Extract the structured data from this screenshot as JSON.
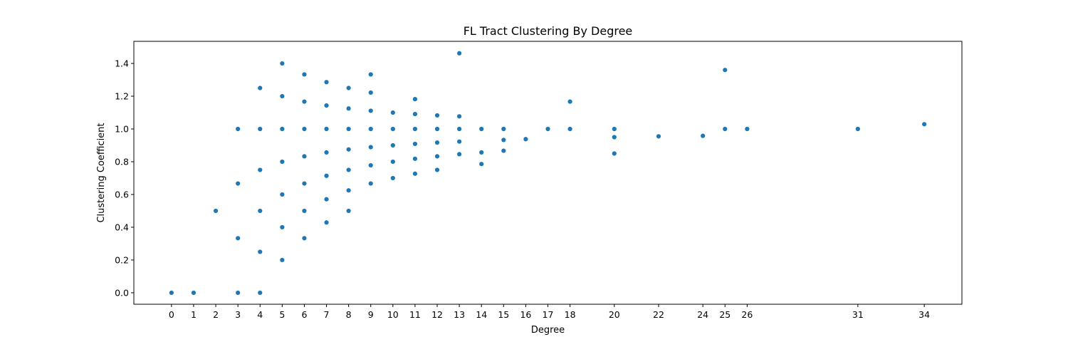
{
  "chart_data": {
    "type": "scatter",
    "title": "FL Tract Clustering By Degree",
    "xlabel": "Degree",
    "ylabel": "Clustering Coefficient",
    "xlim": [
      -1.7,
      35.7
    ],
    "ylim": [
      -0.07,
      1.535
    ],
    "x_ticks": [
      0,
      1,
      2,
      3,
      4,
      5,
      6,
      7,
      8,
      9,
      10,
      11,
      12,
      13,
      14,
      15,
      16,
      17,
      18,
      20,
      22,
      24,
      25,
      26,
      31,
      34
    ],
    "y_ticks": [
      0.0,
      0.2,
      0.4,
      0.6,
      0.8,
      1.0,
      1.2,
      1.4
    ],
    "y_tick_labels": [
      "0.0",
      "0.2",
      "0.4",
      "0.6",
      "0.8",
      "1.0",
      "1.2",
      "1.4"
    ],
    "grid": false,
    "color": "#1f77b4",
    "points": [
      [
        0,
        0.0
      ],
      [
        1,
        0.0
      ],
      [
        2,
        0.5
      ],
      [
        3,
        0.0
      ],
      [
        3,
        0.333
      ],
      [
        3,
        0.667
      ],
      [
        3,
        1.0
      ],
      [
        4,
        0.0
      ],
      [
        4,
        0.25
      ],
      [
        4,
        0.5
      ],
      [
        4,
        0.75
      ],
      [
        4,
        1.0
      ],
      [
        4,
        1.25
      ],
      [
        5,
        0.2
      ],
      [
        5,
        0.4
      ],
      [
        5,
        0.6
      ],
      [
        5,
        0.8
      ],
      [
        5,
        1.0
      ],
      [
        5,
        1.2
      ],
      [
        5,
        1.4
      ],
      [
        6,
        0.333
      ],
      [
        6,
        0.5
      ],
      [
        6,
        0.667
      ],
      [
        6,
        0.833
      ],
      [
        6,
        1.0
      ],
      [
        6,
        1.167
      ],
      [
        6,
        1.333
      ],
      [
        7,
        0.429
      ],
      [
        7,
        0.571
      ],
      [
        7,
        0.714
      ],
      [
        7,
        0.857
      ],
      [
        7,
        1.0
      ],
      [
        7,
        1.143
      ],
      [
        7,
        1.286
      ],
      [
        8,
        0.5
      ],
      [
        8,
        0.625
      ],
      [
        8,
        0.75
      ],
      [
        8,
        0.875
      ],
      [
        8,
        1.0
      ],
      [
        8,
        1.125
      ],
      [
        8,
        1.25
      ],
      [
        9,
        0.667
      ],
      [
        9,
        0.778
      ],
      [
        9,
        0.889
      ],
      [
        9,
        1.0
      ],
      [
        9,
        1.111
      ],
      [
        9,
        1.222
      ],
      [
        9,
        1.333
      ],
      [
        10,
        0.7
      ],
      [
        10,
        0.8
      ],
      [
        10,
        0.9
      ],
      [
        10,
        1.0
      ],
      [
        10,
        1.1
      ],
      [
        11,
        0.727
      ],
      [
        11,
        0.818
      ],
      [
        11,
        0.909
      ],
      [
        11,
        1.0
      ],
      [
        11,
        1.091
      ],
      [
        11,
        1.182
      ],
      [
        12,
        0.75
      ],
      [
        12,
        0.833
      ],
      [
        12,
        0.917
      ],
      [
        12,
        1.0
      ],
      [
        12,
        1.083
      ],
      [
        13,
        0.846
      ],
      [
        13,
        0.923
      ],
      [
        13,
        1.0
      ],
      [
        13,
        1.077
      ],
      [
        13,
        1.462
      ],
      [
        14,
        0.786
      ],
      [
        14,
        0.857
      ],
      [
        14,
        1.0
      ],
      [
        15,
        0.867
      ],
      [
        15,
        0.933
      ],
      [
        15,
        1.0
      ],
      [
        16,
        0.938
      ],
      [
        17,
        1.0
      ],
      [
        18,
        1.0
      ],
      [
        18,
        1.167
      ],
      [
        20,
        0.85
      ],
      [
        20,
        0.95
      ],
      [
        20,
        1.0
      ],
      [
        22,
        0.955
      ],
      [
        24,
        0.958
      ],
      [
        25,
        1.0
      ],
      [
        25,
        1.36
      ],
      [
        26,
        1.0
      ],
      [
        31,
        1.0
      ],
      [
        34,
        1.029
      ]
    ]
  }
}
